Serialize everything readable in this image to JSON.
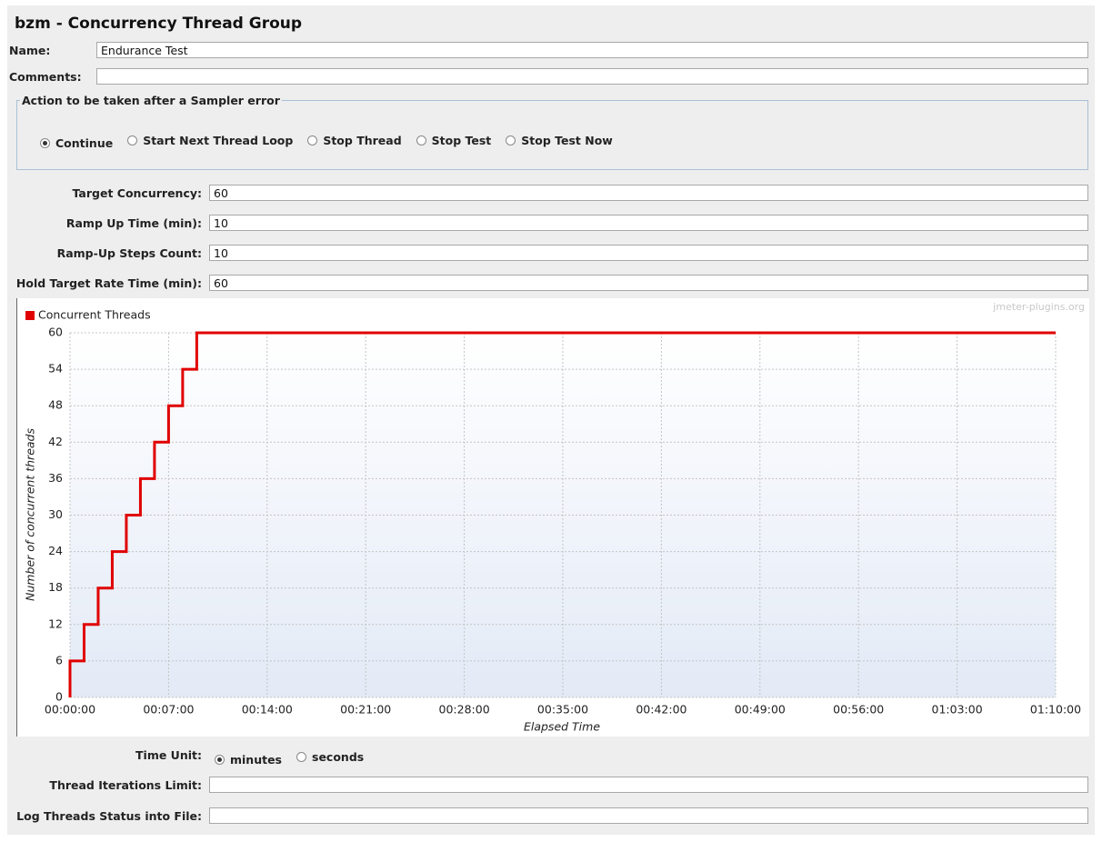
{
  "header": {
    "title": "bzm - Concurrency Thread Group"
  },
  "name_field": {
    "label": "Name:",
    "value": "Endurance Test"
  },
  "comments_field": {
    "label": "Comments:"
  },
  "sampler_error": {
    "title": "Action to be taken after a Sampler error",
    "options": [
      "Continue",
      "Start Next Thread Loop",
      "Stop Thread",
      "Stop Test",
      "Stop Test Now"
    ],
    "selected": 0
  },
  "settings": [
    {
      "label": "Target Concurrency:",
      "value": "60"
    },
    {
      "label": "Ramp Up Time (min):",
      "value": "10"
    },
    {
      "label": "Ramp-Up Steps Count:",
      "value": "10"
    },
    {
      "label": "Hold Target Rate Time (min):",
      "value": "60"
    }
  ],
  "chart_data": {
    "type": "line",
    "watermark": "jmeter-plugins.org",
    "x_label": "Elapsed Time",
    "y_label": "Number of concurrent threads",
    "x": [
      0,
      0,
      60,
      60,
      120,
      120,
      180,
      180,
      240,
      240,
      300,
      300,
      360,
      360,
      420,
      420,
      480,
      480,
      540,
      540,
      4200
    ],
    "series": [
      {
        "name": "Concurrent Threads",
        "color": "#e00000",
        "values": [
          0,
          6,
          6,
          12,
          12,
          18,
          18,
          24,
          24,
          30,
          30,
          36,
          36,
          42,
          42,
          48,
          48,
          54,
          54,
          60,
          60
        ]
      }
    ],
    "xlim": [
      0,
      4200
    ],
    "xticks": [
      {
        "value": 0,
        "label": "00:00:00"
      },
      {
        "value": 420,
        "label": "00:07:00"
      },
      {
        "value": 840,
        "label": "00:14:00"
      },
      {
        "value": 1260,
        "label": "00:21:00"
      },
      {
        "value": 1680,
        "label": "00:28:00"
      },
      {
        "value": 2100,
        "label": "00:35:00"
      },
      {
        "value": 2520,
        "label": "00:42:00"
      },
      {
        "value": 2940,
        "label": "00:49:00"
      },
      {
        "value": 3360,
        "label": "00:56:00"
      },
      {
        "value": 3780,
        "label": "01:03:00"
      },
      {
        "value": 4200,
        "label": "01:10:00"
      }
    ],
    "ylim": [
      0,
      60
    ],
    "yticks": [
      0,
      6,
      12,
      18,
      24,
      30,
      36,
      42,
      48,
      54,
      60
    ],
    "grid": true,
    "legend": "top-left"
  },
  "time_unit": {
    "label": "Time Unit:",
    "options": [
      "minutes",
      "seconds"
    ],
    "selected": 0
  },
  "iterations_field": {
    "label": "Thread Iterations Limit:"
  },
  "log_field": {
    "label": "Log Threads Status into File:"
  }
}
